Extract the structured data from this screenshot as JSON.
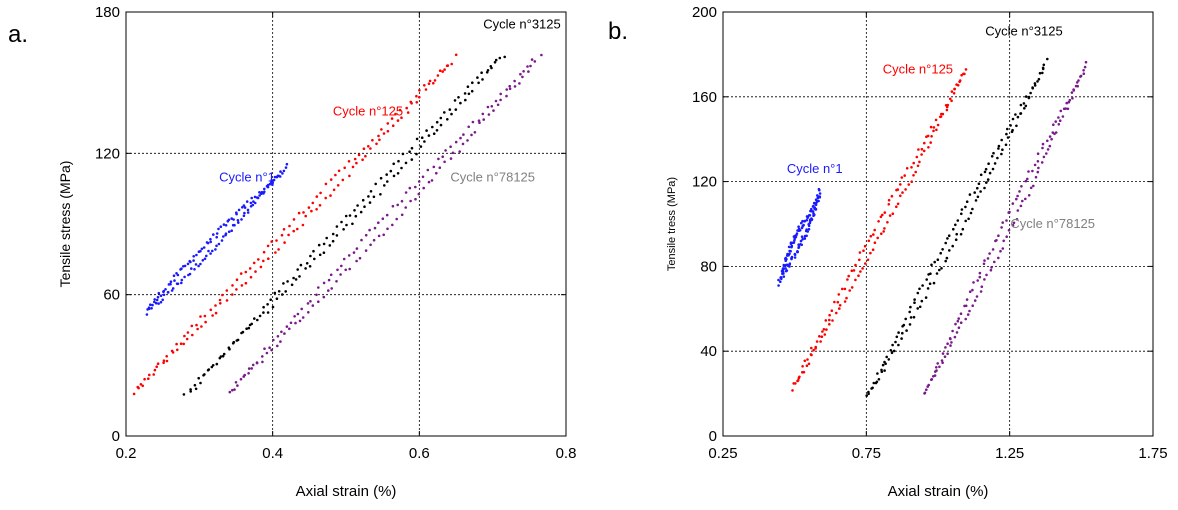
{
  "chart_data": [
    {
      "panel_label": "a.",
      "type": "scatter",
      "xlabel": "Axial strain (%)",
      "ylabel": "Tensile stress (MPa)",
      "xlim": [
        0.2,
        0.8
      ],
      "ylim": [
        0,
        180
      ],
      "xticks": [
        "0.2",
        "0.4",
        "0.6",
        "0.8"
      ],
      "yticks": [
        "0",
        "60",
        "120",
        "180"
      ],
      "xgrid": [
        0.4,
        0.6
      ],
      "ygrid": [
        60,
        120
      ],
      "series": [
        {
          "name": "Cycle n°1",
          "color": "#1a1aff",
          "label_at": [
            0.365,
            108
          ],
          "label_color": "#1a1aff",
          "loading": [
            [
              0.228,
              52
            ],
            [
              0.42,
              115
            ]
          ],
          "unloading": [
            [
              0.23,
              54
            ],
            [
              0.41,
              111
            ]
          ]
        },
        {
          "name": "Cycle n°125",
          "color": "#ff0000",
          "label_at": [
            0.53,
            136
          ],
          "label_color": "#ff0000",
          "loading": [
            [
              0.21,
              18
            ],
            [
              0.65,
              161
            ]
          ],
          "unloading": [
            [
              0.215,
              20
            ],
            [
              0.64,
              158
            ]
          ]
        },
        {
          "name": "Cycle n°3125",
          "color": "#000000",
          "label_at": [
            0.74,
            173
          ],
          "label_color": "#000000",
          "loading": [
            [
              0.28,
              18
            ],
            [
              0.715,
              162
            ]
          ],
          "unloading": [
            [
              0.29,
              19
            ],
            [
              0.705,
              160
            ]
          ]
        },
        {
          "name": "Cycle n°78125",
          "color": "#7a1a8c",
          "label_at": [
            0.7,
            108
          ],
          "label_color": "#808080",
          "loading": [
            [
              0.34,
              18
            ],
            [
              0.765,
              161
            ]
          ],
          "unloading": [
            [
              0.345,
              20
            ],
            [
              0.755,
              159
            ]
          ]
        }
      ]
    },
    {
      "panel_label": "b.",
      "type": "scatter",
      "xlabel": "Axial strain (%)",
      "ylabel": "Tensile tress (MPa)",
      "xlim": [
        0.25,
        1.75
      ],
      "ylim": [
        0,
        200
      ],
      "xticks": [
        "0.25",
        "0.75",
        "1.25",
        "1.75"
      ],
      "yticks": [
        "0",
        "40",
        "80",
        "120",
        "160",
        "200"
      ],
      "xgrid": [
        0.75,
        1.25
      ],
      "ygrid": [
        40,
        80,
        120,
        160
      ],
      "series": [
        {
          "name": "Cycle n°1",
          "color": "#1a1aff",
          "label_at": [
            0.57,
            124
          ],
          "label_color": "#1a1aff",
          "loading": [
            [
              0.44,
              72
            ],
            [
              0.59,
              116
            ]
          ],
          "unloading": [
            [
              0.455,
              76
            ],
            [
              0.585,
              112
            ]
          ]
        },
        {
          "name": "Cycle n°125",
          "color": "#ff0000",
          "label_at": [
            0.93,
            171
          ],
          "label_color": "#ff0000",
          "loading": [
            [
              0.49,
              22
            ],
            [
              1.1,
              174
            ]
          ],
          "unloading": [
            [
              0.5,
              24
            ],
            [
              1.09,
              170
            ]
          ]
        },
        {
          "name": "Cycle n°3125",
          "color": "#000000",
          "label_at": [
            1.3,
            189
          ],
          "label_color": "#000000",
          "loading": [
            [
              0.75,
              18
            ],
            [
              1.38,
              177
            ]
          ],
          "unloading": [
            [
              0.76,
              20
            ],
            [
              1.37,
              173
            ]
          ]
        },
        {
          "name": "Cycle n°78125",
          "color": "#7a1a8c",
          "label_at": [
            1.4,
            98
          ],
          "label_color": "#808080",
          "loading": [
            [
              0.95,
              19
            ],
            [
              1.52,
              176
            ]
          ],
          "unloading": [
            [
              0.96,
              21
            ],
            [
              1.51,
              172
            ]
          ]
        }
      ]
    }
  ]
}
